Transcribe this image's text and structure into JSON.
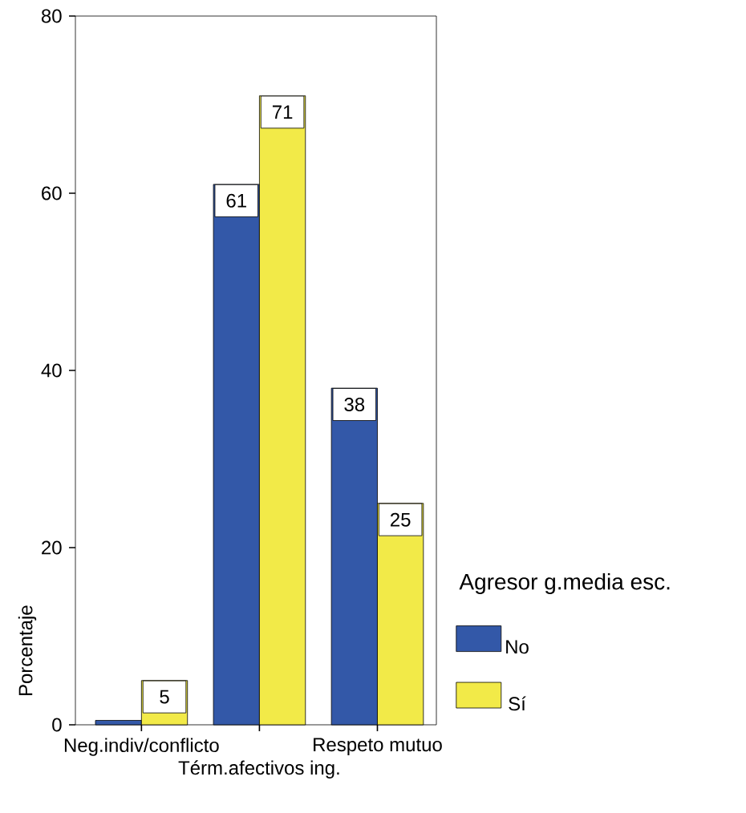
{
  "chart_data": {
    "type": "bar",
    "ylabel": "Porcentaje",
    "legend_title": "Agresor g.media esc.",
    "categories": [
      "Neg.indiv/conflicto",
      "Térm.afectivos ing.",
      "Respeto mutuo"
    ],
    "series": [
      {
        "name": "No",
        "color": "#3358a8",
        "values": [
          0.5,
          61,
          38
        ],
        "value_labels": [
          null,
          "61",
          "38"
        ]
      },
      {
        "name": "Sí",
        "color": "#f2ea48",
        "values": [
          5,
          71,
          25
        ],
        "value_labels": [
          "5",
          "71",
          "25"
        ]
      }
    ],
    "ylim": [
      0,
      80
    ],
    "yticks": [
      0,
      20,
      40,
      60,
      80
    ],
    "grid": false,
    "legend": "right"
  }
}
